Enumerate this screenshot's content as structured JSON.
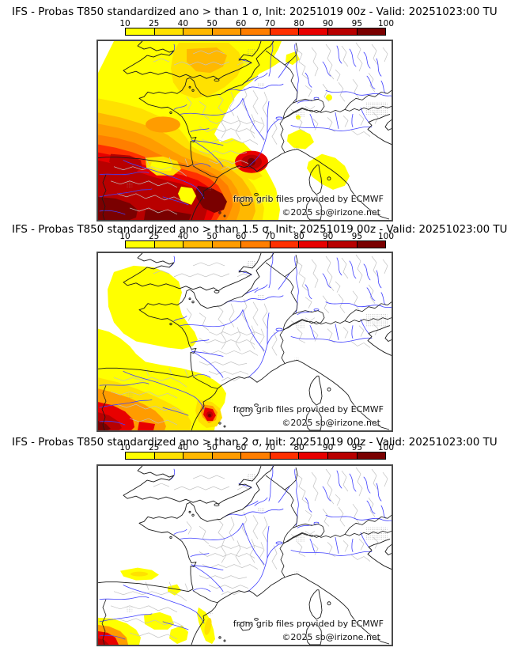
{
  "panels": [
    {
      "sigma": "1",
      "title": "IFS - Probas T850  standardized ano > than 1 σ, Init: 20251019 00z - Valid: 20251023:00 TU"
    },
    {
      "sigma": "1.5",
      "title": "IFS - Probas T850  standardized ano > than 1.5 σ, Init: 20251019 00z - Valid: 20251023:00 TU"
    },
    {
      "sigma": "2",
      "title": "IFS - Probas T850  standardized ano > than 2 σ, Init: 20251019 00z - Valid: 20251023:00 TU"
    }
  ],
  "colorbar": {
    "tick_labels": [
      "10",
      "25",
      "40",
      "50",
      "60",
      "70",
      "80",
      "90",
      "95",
      "100"
    ],
    "segment_colors": [
      "#ffff00",
      "#ffe100",
      "#ffb800",
      "#ff9c00",
      "#ff7e00",
      "#ff3000",
      "#e80000",
      "#b80000",
      "#7a0000"
    ]
  },
  "attribution": {
    "line1": "from grib files provided by ECMWF",
    "line2": "©2025 sb@irizone.net"
  },
  "map_palette": {
    "river": "#4040ff",
    "coast": "#1a1a1a",
    "admin_border": "#c2c2c2",
    "frame": "#4a4a4a",
    "background": "#ffffff"
  }
}
